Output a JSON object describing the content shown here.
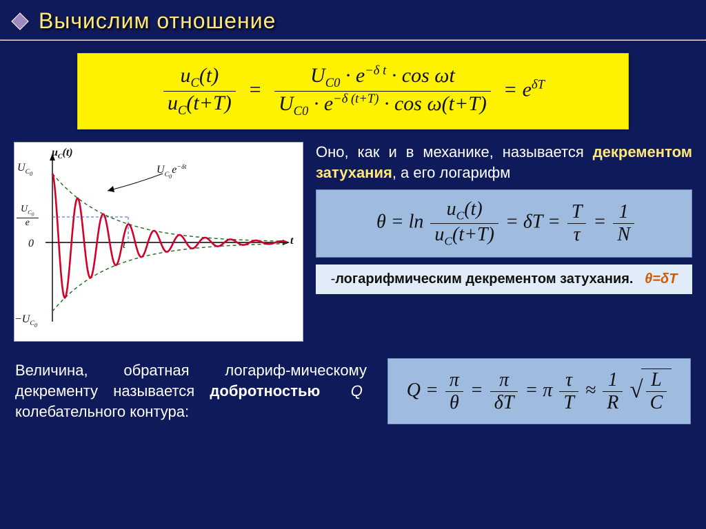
{
  "title": "Вычислим отношение",
  "main_equation": {
    "lhs": {
      "num": "u_C(t)",
      "den": "u_C(t+T)"
    },
    "mid": {
      "num": "U_{C0} · e^{−δt} · cos ωt",
      "den": "U_{C0} · e^{−δ(t+T)} · cos ω(t+T)"
    },
    "rhs": "e^{δT}"
  },
  "decrement_text": {
    "prefix": "Оно, как и в механике, называется ",
    "bold": "декрементом затухания",
    "suffix": ", а его логарифм"
  },
  "theta_equation_text": "θ = ln (u_C(t) / u_C(t+T)) = δT = T/τ = 1/N",
  "log_decrement_label": {
    "prefix": "-",
    "bold": "логарифмическим декрементом затухания.",
    "symbol": "θ=δT"
  },
  "q_text": {
    "part1": "Величина, обратная логариф-мическому декременту называется ",
    "bold": "добротностью",
    "part2": " Q колебательного контура:"
  },
  "Q_equation_text": "Q = π/θ = π/(δT) = π·τ/T ≈ (1/R)·√(L/C)",
  "chart": {
    "type": "line",
    "axes": {
      "y_label": "u_C(t)",
      "x_label": "t",
      "envelope_label": "U_{C0} e^{−δt}"
    },
    "y_ticks": [
      "U_{C0}",
      "U_{C0}/e",
      "0",
      "−U_{C0}"
    ],
    "x_marker": "τ",
    "colors": {
      "curve": "#d2002a",
      "envelope": "#1b6b1b",
      "axis": "#000",
      "background": "#ffffff",
      "hline": "#3a55c7"
    },
    "line_width": {
      "curve": 2.5,
      "envelope": 1.4,
      "axis": 1.2
    },
    "envelope_dash": "5,4",
    "xlim": [
      0,
      340
    ],
    "ylim": [
      -110,
      110
    ],
    "oscillation": {
      "initial_amplitude": 100,
      "delta": 0.012,
      "omega": 0.17,
      "samples": 340
    },
    "e_marker_y": 36.8
  },
  "colors": {
    "page_bg": "#0f1a5a",
    "title": "#ffe87a",
    "eq_yellow_bg": "#fef200",
    "eq_blue_bg": "#9fbce0",
    "log_label_bg": "#e0ecf7",
    "accent": "#d15b00"
  },
  "typography": {
    "title_fontsize": 32,
    "body_fontsize": 22,
    "eq_fontsize": 30
  }
}
